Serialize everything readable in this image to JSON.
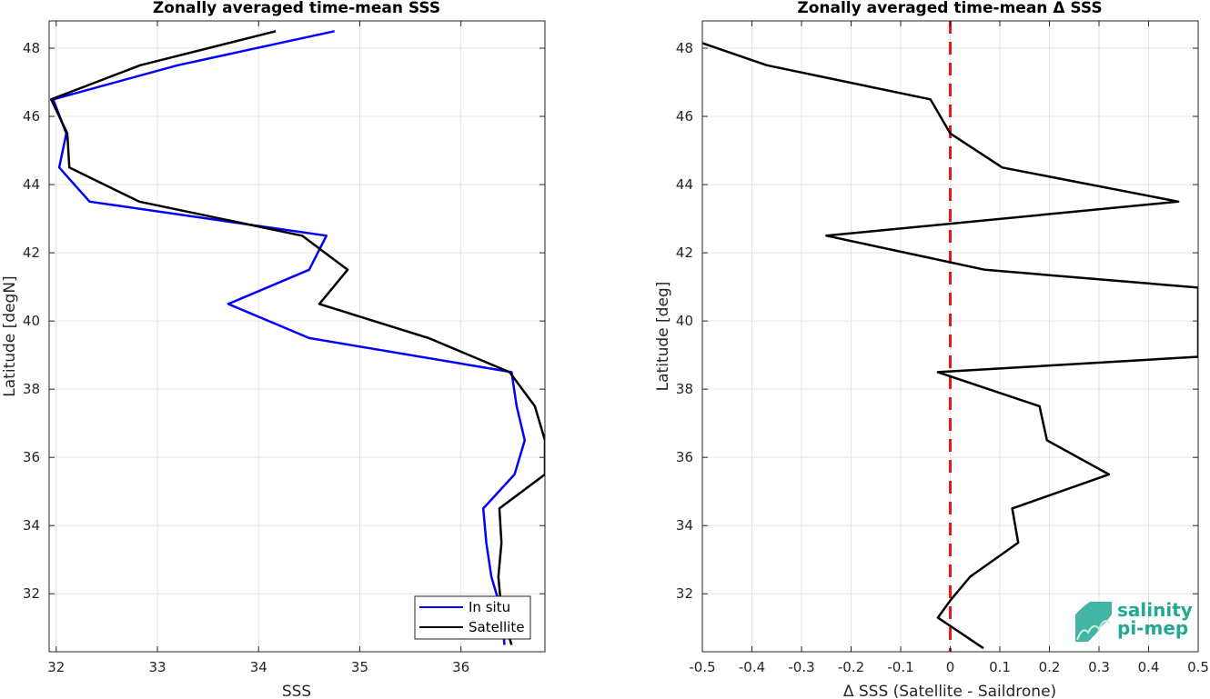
{
  "chart_data": [
    {
      "type": "line",
      "title": "Zonally averaged time-mean SSS",
      "xlabel": "SSS",
      "ylabel": "Latitude [degN]",
      "xlim": [
        31.93,
        36.83
      ],
      "ylim": [
        30.3,
        48.8
      ],
      "xticks": [
        "32",
        "33",
        "34",
        "35",
        "36"
      ],
      "yticks": [
        "32",
        "34",
        "36",
        "38",
        "40",
        "42",
        "44",
        "46",
        "48"
      ],
      "grid": true,
      "legend": "bottom-right",
      "series": [
        {
          "name": "In situ",
          "color": "#0000ff",
          "points": [
            [
              34.75,
              48.5
            ],
            [
              33.2,
              47.5
            ],
            [
              31.97,
              46.5
            ],
            [
              32.1,
              45.5
            ],
            [
              32.03,
              44.5
            ],
            [
              32.33,
              43.5
            ],
            [
              34.67,
              42.5
            ],
            [
              34.5,
              41.5
            ],
            [
              33.7,
              40.5
            ],
            [
              34.5,
              39.5
            ],
            [
              36.5,
              38.5
            ],
            [
              36.55,
              37.5
            ],
            [
              36.63,
              36.5
            ],
            [
              36.53,
              35.5
            ],
            [
              36.22,
              34.5
            ],
            [
              36.25,
              33.5
            ],
            [
              36.3,
              32.5
            ],
            [
              36.4,
              31.5
            ],
            [
              36.43,
              30.5
            ]
          ]
        },
        {
          "name": "Satellite",
          "color": "#000000",
          "points": [
            [
              34.17,
              48.5
            ],
            [
              32.83,
              47.5
            ],
            [
              31.95,
              46.5
            ],
            [
              32.11,
              45.5
            ],
            [
              32.13,
              44.5
            ],
            [
              32.82,
              43.5
            ],
            [
              34.43,
              42.5
            ],
            [
              34.88,
              41.5
            ],
            [
              34.6,
              40.5
            ],
            [
              35.68,
              39.5
            ],
            [
              36.48,
              38.5
            ],
            [
              36.73,
              37.5
            ],
            [
              36.83,
              36.5
            ],
            [
              36.83,
              35.5
            ],
            [
              36.38,
              34.5
            ],
            [
              36.4,
              33.5
            ],
            [
              36.37,
              32.5
            ],
            [
              36.4,
              31.5
            ],
            [
              36.5,
              30.5
            ]
          ]
        }
      ]
    },
    {
      "type": "line",
      "title": "Zonally averaged time-mean Δ SSS",
      "xlabel": "Δ SSS (Satellite - Saildrone)",
      "ylabel": "Latitude [deg]",
      "xlim": [
        -0.5,
        0.5
      ],
      "ylim": [
        30.3,
        48.8
      ],
      "xticks": [
        "-0.5",
        "-0.4",
        "-0.3",
        "-0.2",
        "-0.1",
        "0",
        "0.1",
        "0.2",
        "0.3",
        "0.4",
        "0.5"
      ],
      "yticks": [
        "32",
        "34",
        "36",
        "38",
        "40",
        "42",
        "44",
        "46",
        "48"
      ],
      "grid": true,
      "reference_line": {
        "x": 0,
        "color": "#e41a1c",
        "style": "dashed"
      },
      "series": [
        {
          "color": "#000000",
          "points": [
            [
              -0.5,
              48.15
            ],
            [
              -0.37,
              47.5
            ],
            [
              -0.04,
              46.5
            ],
            [
              0.0,
              45.5
            ],
            [
              0.105,
              44.5
            ],
            [
              0.46,
              43.5
            ],
            [
              -0.25,
              42.5
            ],
            [
              0.07,
              41.5
            ],
            [
              0.5,
              40.98
            ],
            [
              0.5,
              38.95
            ],
            [
              -0.025,
              38.5
            ],
            [
              0.18,
              37.5
            ],
            [
              0.195,
              36.5
            ],
            [
              0.32,
              35.5
            ],
            [
              0.125,
              34.5
            ],
            [
              0.137,
              33.5
            ],
            [
              0.04,
              32.5
            ],
            [
              0.0,
              31.8
            ],
            [
              -0.025,
              31.3
            ],
            [
              0.067,
              30.4
            ]
          ]
        }
      ]
    }
  ],
  "logo": {
    "line1": "salinity",
    "line2": "pi-mep",
    "color": "#23a894"
  }
}
